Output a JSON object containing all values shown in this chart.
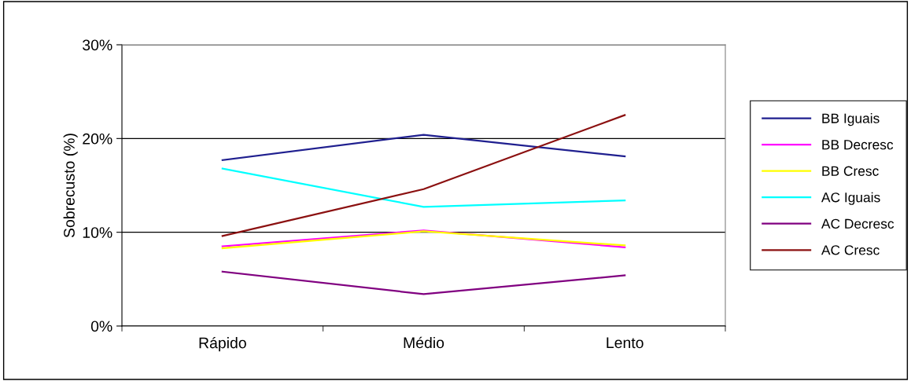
{
  "chart_data": {
    "type": "line",
    "ylabel": "Sobrecusto (%)",
    "categories": [
      "Rápido",
      "Médio",
      "Lento"
    ],
    "series": [
      {
        "name": "BB Iguais",
        "color": "#1f1f8f",
        "values": [
          17.7,
          20.4,
          18.1
        ]
      },
      {
        "name": "BB Decresc",
        "color": "#ff00ff",
        "values": [
          8.5,
          10.2,
          8.4
        ]
      },
      {
        "name": "BB Cresc",
        "color": "#ffff00",
        "values": [
          8.3,
          10.1,
          8.6
        ]
      },
      {
        "name": "AC Iguais",
        "color": "#00ffff",
        "values": [
          16.8,
          12.7,
          13.4
        ]
      },
      {
        "name": "AC Decresc",
        "color": "#800080",
        "values": [
          5.8,
          3.4,
          5.4
        ]
      },
      {
        "name": "AC Cresc",
        "color": "#8b1010",
        "values": [
          9.6,
          14.6,
          22.5
        ]
      }
    ],
    "ylim": [
      0,
      30
    ],
    "yticks": [
      {
        "value": 0,
        "label": "0%"
      },
      {
        "value": 10,
        "label": "10%"
      },
      {
        "value": 20,
        "label": "20%"
      },
      {
        "value": 30,
        "label": "30%"
      }
    ],
    "grid": "y",
    "legend": "right",
    "marker": "none",
    "line_style": "solid"
  }
}
